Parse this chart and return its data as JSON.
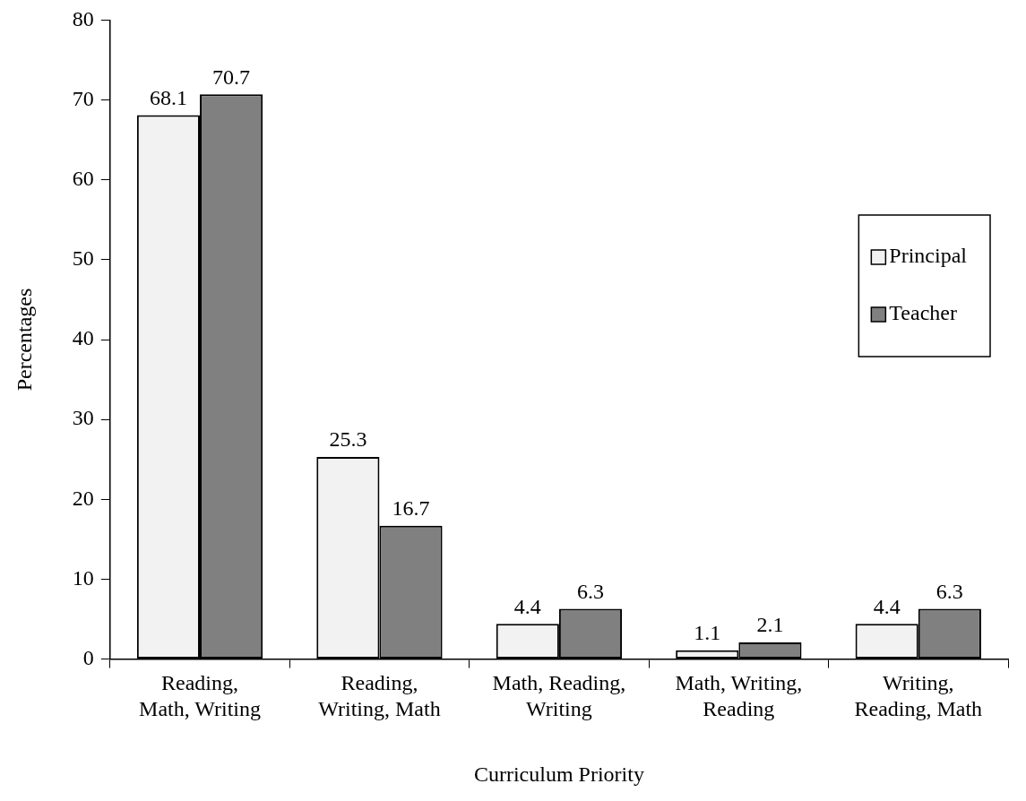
{
  "chart_data": {
    "type": "bar",
    "xlabel": "Curriculum Priority",
    "ylabel": "Percentages",
    "categories": [
      "Reading, Math, Writing",
      "Reading, Writing, Math",
      "Math, Reading, Writing",
      "Math, Writing, Reading",
      "Writing, Reading, Math"
    ],
    "series": [
      {
        "name": "Principal",
        "color": "#f2f2f2",
        "values": [
          68.1,
          25.3,
          4.4,
          1.1,
          4.4
        ]
      },
      {
        "name": "Teacher",
        "color": "#808080",
        "values": [
          70.7,
          16.7,
          6.3,
          2.1,
          6.3
        ]
      }
    ],
    "ylim": [
      0,
      80
    ],
    "yticks": [
      0,
      10,
      20,
      30,
      40,
      50,
      60,
      70,
      80
    ],
    "grid": false,
    "legend": "right",
    "data_labels": true
  }
}
